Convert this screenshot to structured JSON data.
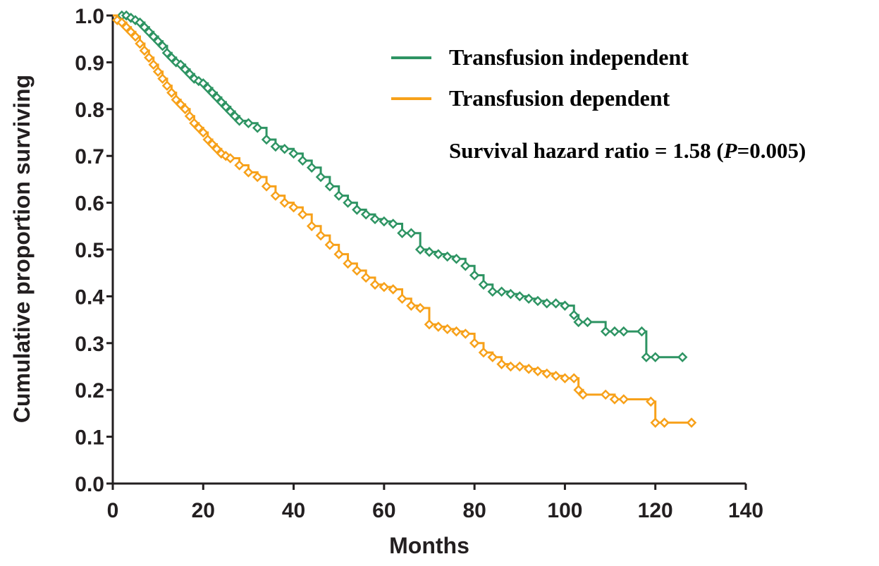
{
  "chart_data": {
    "type": "line",
    "title": "",
    "xlabel": "Months",
    "ylabel": "Cumulative proportion surviving",
    "xlim": [
      0,
      140
    ],
    "ylim": [
      0.0,
      1.0
    ],
    "x_ticks": [
      0,
      20,
      40,
      60,
      80,
      100,
      120,
      140
    ],
    "y_ticks": [
      "0.0",
      "0.1",
      "0.2",
      "0.3",
      "0.4",
      "0.5",
      "0.6",
      "0.7",
      "0.8",
      "0.9",
      "1.0"
    ],
    "grid": false,
    "legend_position": "top-right",
    "annotation": {
      "prefix": "Survival hazard ratio = 1.58 (",
      "italic": "P",
      "suffix": "=0.005)"
    },
    "series": [
      {
        "name": "Transfusion independent",
        "color": "#2e9463",
        "marker": "open-diamond",
        "x": [
          0,
          2,
          3,
          4,
          5,
          6,
          7,
          8,
          9,
          10,
          11,
          12,
          13,
          14,
          15,
          16,
          17,
          18,
          19,
          20,
          21,
          22,
          23,
          24,
          25,
          26,
          27,
          28,
          30,
          32,
          34,
          36,
          38,
          40,
          42,
          44,
          46,
          48,
          50,
          52,
          54,
          56,
          58,
          60,
          62,
          64,
          66,
          68,
          70,
          72,
          74,
          76,
          78,
          80,
          82,
          84,
          86,
          88,
          90,
          92,
          94,
          96,
          98,
          100,
          102,
          103,
          105,
          109,
          111,
          113,
          117,
          118,
          120,
          126
        ],
        "y": [
          1.0,
          1.0,
          1.0,
          0.995,
          0.99,
          0.985,
          0.975,
          0.965,
          0.955,
          0.945,
          0.935,
          0.92,
          0.91,
          0.9,
          0.895,
          0.885,
          0.875,
          0.865,
          0.86,
          0.855,
          0.845,
          0.835,
          0.825,
          0.815,
          0.805,
          0.795,
          0.785,
          0.775,
          0.77,
          0.76,
          0.735,
          0.72,
          0.715,
          0.705,
          0.69,
          0.675,
          0.655,
          0.635,
          0.615,
          0.6,
          0.585,
          0.575,
          0.565,
          0.56,
          0.555,
          0.535,
          0.535,
          0.5,
          0.495,
          0.49,
          0.485,
          0.48,
          0.465,
          0.445,
          0.425,
          0.41,
          0.41,
          0.405,
          0.4,
          0.395,
          0.39,
          0.385,
          0.385,
          0.38,
          0.36,
          0.345,
          0.345,
          0.325,
          0.325,
          0.325,
          0.325,
          0.27,
          0.27,
          0.27
        ]
      },
      {
        "name": "Transfusion dependent",
        "color": "#f7a11a",
        "marker": "open-diamond",
        "x": [
          0,
          1,
          2,
          3,
          4,
          5,
          6,
          7,
          8,
          9,
          10,
          11,
          12,
          13,
          14,
          15,
          16,
          17,
          18,
          19,
          20,
          21,
          22,
          23,
          24,
          25,
          26,
          28,
          30,
          32,
          34,
          36,
          38,
          40,
          42,
          44,
          46,
          48,
          50,
          52,
          54,
          56,
          58,
          60,
          62,
          64,
          66,
          68,
          70,
          72,
          74,
          76,
          78,
          80,
          82,
          84,
          86,
          88,
          90,
          92,
          94,
          96,
          98,
          100,
          102,
          103,
          104,
          109,
          111,
          113,
          119,
          120,
          122,
          128
        ],
        "y": [
          1.0,
          0.99,
          0.985,
          0.975,
          0.965,
          0.955,
          0.94,
          0.925,
          0.91,
          0.895,
          0.88,
          0.865,
          0.85,
          0.835,
          0.82,
          0.81,
          0.8,
          0.785,
          0.77,
          0.76,
          0.75,
          0.735,
          0.725,
          0.715,
          0.705,
          0.7,
          0.695,
          0.68,
          0.665,
          0.655,
          0.635,
          0.615,
          0.6,
          0.59,
          0.575,
          0.55,
          0.53,
          0.51,
          0.49,
          0.47,
          0.455,
          0.44,
          0.425,
          0.42,
          0.415,
          0.395,
          0.38,
          0.375,
          0.34,
          0.335,
          0.33,
          0.325,
          0.32,
          0.3,
          0.28,
          0.27,
          0.255,
          0.25,
          0.25,
          0.245,
          0.24,
          0.235,
          0.23,
          0.225,
          0.225,
          0.2,
          0.19,
          0.19,
          0.18,
          0.18,
          0.175,
          0.13,
          0.13,
          0.13
        ]
      }
    ]
  }
}
